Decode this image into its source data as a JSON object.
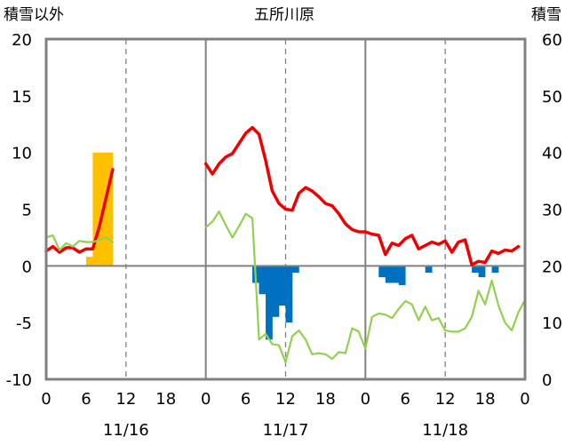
{
  "chart_data": {
    "type": "line",
    "title": "五所川原",
    "left_axis_label": "積雪以外",
    "right_axis_label": "積雪",
    "left_ylim": [
      -10,
      20
    ],
    "left_yticks": [
      "-10",
      "-5",
      "0",
      "5",
      "10",
      "15",
      "20"
    ],
    "right_ylim": [
      0,
      60
    ],
    "right_yticks": [
      "0",
      "10",
      "20",
      "30",
      "40",
      "50",
      "60"
    ],
    "xlim": [
      0,
      72
    ],
    "x_unit": "hours elapsed since 11/16 0:00",
    "xtick_labels": [
      {
        "x": 0,
        "label": "0"
      },
      {
        "x": 6,
        "label": "6"
      },
      {
        "x": 12,
        "label": "12"
      },
      {
        "x": 18,
        "label": "18"
      },
      {
        "x": 24,
        "label": "0"
      },
      {
        "x": 30,
        "label": "6"
      },
      {
        "x": 36,
        "label": "12"
      },
      {
        "x": 42,
        "label": "18"
      },
      {
        "x": 48,
        "label": "0"
      },
      {
        "x": 54,
        "label": "6"
      },
      {
        "x": 60,
        "label": "12"
      },
      {
        "x": 66,
        "label": "18"
      },
      {
        "x": 72,
        "label": "0"
      }
    ],
    "date_labels": [
      {
        "x": 12,
        "label": "11/16"
      },
      {
        "x": 36,
        "label": "11/17"
      },
      {
        "x": 60,
        "label": "11/18"
      }
    ],
    "day_boundaries": [
      24,
      48
    ],
    "dashed_gridlines_x": [
      12,
      36,
      60
    ],
    "red_line_color": "#ee0000",
    "green_line_color": "#92d050",
    "blue_bar_color": "#0070c0",
    "orange_bar_color": "#ffc000",
    "purple_line_color": "#7030a0",
    "series": [
      {
        "color": "#ee0000",
        "axis": "left",
        "segments": [
          [
            [
              0,
              1.3
            ],
            [
              1,
              1.7
            ],
            [
              2,
              1.2
            ],
            [
              3,
              1.6
            ],
            [
              4,
              1.6
            ],
            [
              5,
              1.2
            ],
            [
              6,
              1.5
            ],
            [
              7,
              1.5
            ],
            [
              8,
              3.5
            ],
            [
              9,
              6
            ],
            [
              10,
              8.5
            ]
          ],
          [
            [
              24,
              9
            ],
            [
              25,
              8.1
            ],
            [
              26,
              9
            ],
            [
              27,
              9.6
            ],
            [
              28,
              9.9
            ],
            [
              29,
              10.8
            ],
            [
              30,
              11.7
            ],
            [
              31,
              12.2
            ],
            [
              32,
              11.6
            ],
            [
              33,
              9.3
            ],
            [
              34,
              6.6
            ],
            [
              35,
              5.5
            ],
            [
              36,
              5.0
            ],
            [
              37,
              4.9
            ],
            [
              38,
              6.4
            ],
            [
              39,
              6.9
            ],
            [
              40,
              6.6
            ],
            [
              41,
              6.1
            ],
            [
              42,
              5.5
            ],
            [
              43,
              5.3
            ],
            [
              44,
              4.6
            ],
            [
              45,
              3.7
            ],
            [
              46,
              3.2
            ],
            [
              47,
              3.0
            ],
            [
              48,
              3.0
            ],
            [
              49,
              2.8
            ],
            [
              50,
              2.7
            ],
            [
              51,
              1.0
            ],
            [
              52,
              2.0
            ],
            [
              53,
              1.8
            ],
            [
              54,
              2.4
            ],
            [
              55,
              2.7
            ],
            [
              56,
              1.5
            ],
            [
              57,
              1.8
            ],
            [
              58,
              2.1
            ],
            [
              59,
              1.9
            ],
            [
              60,
              2.2
            ],
            [
              61,
              1.2
            ],
            [
              62,
              2.1
            ],
            [
              63,
              2.3
            ],
            [
              64,
              0.1
            ],
            [
              65,
              0.4
            ],
            [
              66,
              0.3
            ],
            [
              67,
              1.3
            ],
            [
              68,
              1.1
            ],
            [
              69,
              1.4
            ],
            [
              70,
              1.3
            ],
            [
              71,
              1.7
            ]
          ]
        ]
      },
      {
        "color": "#92d050",
        "axis": "left",
        "segments": [
          [
            [
              0,
              2.5
            ],
            [
              1,
              2.7
            ],
            [
              2,
              1.4
            ],
            [
              3,
              2.0
            ],
            [
              4,
              1.7
            ],
            [
              5,
              2.2
            ],
            [
              6,
              2.1
            ],
            [
              7,
              2.1
            ],
            [
              8,
              2.3
            ],
            [
              9,
              2.5
            ],
            [
              10,
              2.1
            ]
          ],
          [
            [
              24,
              3.4
            ],
            [
              25,
              3.9
            ],
            [
              26,
              4.8
            ],
            [
              27,
              3.6
            ],
            [
              28,
              2.5
            ],
            [
              29,
              3.5
            ],
            [
              30,
              4.6
            ],
            [
              31,
              4.2
            ],
            [
              32,
              -6.5
            ],
            [
              33,
              -6.0
            ],
            [
              34,
              -6.9
            ],
            [
              35,
              -7.0
            ],
            [
              36,
              -8.5
            ],
            [
              37,
              -6.2
            ],
            [
              38,
              -5.7
            ],
            [
              39,
              -6.5
            ],
            [
              40,
              -7.8
            ],
            [
              41,
              -7.7
            ],
            [
              42,
              -7.8
            ],
            [
              43,
              -8.2
            ],
            [
              44,
              -7.6
            ],
            [
              45,
              -7.7
            ],
            [
              46,
              -5.5
            ],
            [
              47,
              -5.8
            ],
            [
              48,
              -7.3
            ],
            [
              49,
              -4.5
            ],
            [
              50,
              -4.2
            ],
            [
              51,
              -4.3
            ],
            [
              52,
              -4.6
            ],
            [
              53,
              -3.8
            ],
            [
              54,
              -3.1
            ],
            [
              55,
              -3.4
            ],
            [
              56,
              -4.8
            ],
            [
              57,
              -3.6
            ],
            [
              58,
              -4.8
            ],
            [
              59,
              -4.6
            ],
            [
              60,
              -5.7
            ],
            [
              61,
              -5.8
            ],
            [
              62,
              -5.8
            ],
            [
              63,
              -5.5
            ],
            [
              64,
              -4.5
            ],
            [
              65,
              -2.2
            ],
            [
              66,
              -3.4
            ],
            [
              67,
              -1.3
            ],
            [
              68,
              -3.5
            ],
            [
              69,
              -5.0
            ],
            [
              70,
              -5.7
            ],
            [
              71,
              -4.1
            ],
            [
              72,
              -3.0
            ]
          ]
        ]
      },
      {
        "color": "#7030a0",
        "axis": "left",
        "segments": [
          [
            [
              0,
              -10
            ],
            [
              24,
              -10
            ],
            [
              48,
              -10
            ],
            [
              72,
              -10
            ]
          ]
        ]
      }
    ],
    "bars": [
      {
        "color": "#ffc000",
        "data": [
          [
            7,
            0.8
          ],
          [
            8,
            10
          ],
          [
            9,
            10
          ],
          [
            10,
            10
          ]
        ]
      },
      {
        "color": "#0070c0",
        "data": [
          [
            32,
            -1.5
          ],
          [
            33,
            -2.5
          ],
          [
            34,
            -6.5
          ],
          [
            35,
            -4.5
          ],
          [
            36,
            -3.5
          ],
          [
            37,
            -5
          ],
          [
            38,
            -0.6
          ],
          [
            51,
            -1
          ],
          [
            52,
            -1.5
          ],
          [
            53,
            -1.5
          ],
          [
            54,
            -1.7
          ],
          [
            58,
            -0.6
          ],
          [
            65,
            -0.6
          ],
          [
            66,
            -1
          ],
          [
            68,
            -0.6
          ]
        ]
      }
    ]
  }
}
